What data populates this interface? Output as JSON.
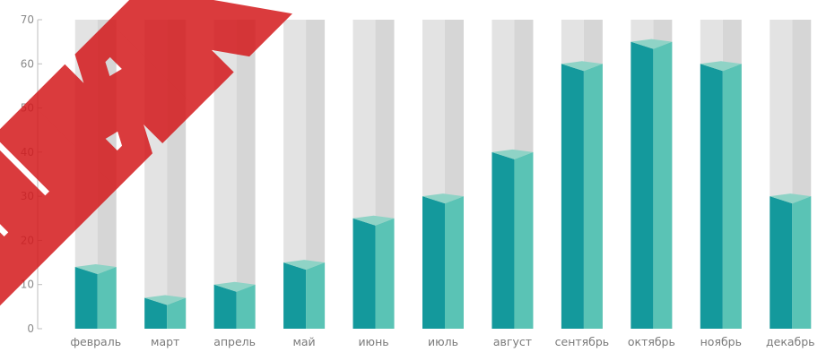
{
  "chart_data": {
    "type": "bar",
    "categories": [
      "февраль",
      "март",
      "апрель",
      "май",
      "июнь",
      "июль",
      "август",
      "сентябрь",
      "октябрь",
      "ноябрь",
      "декабрь"
    ],
    "values": [
      14,
      7,
      10,
      15,
      25,
      30,
      40,
      60,
      65,
      60,
      30
    ],
    "ylim": [
      0,
      70
    ],
    "yticks": [
      0,
      10,
      20,
      30,
      40,
      50,
      60,
      70
    ],
    "title": "",
    "xlabel": "",
    "ylabel": "",
    "grid": false,
    "style": "3d-prism-stacked-on-gray-background-columns"
  },
  "colors": {
    "bar_front": "#14999c",
    "bar_side": "#5ac3b5",
    "bar_top": "#8fd3c6",
    "background_column": "#e3e3e3",
    "background_column_side": "#d6d6d6",
    "axis": "#bdbdbd",
    "watermark": "#d4191c"
  },
  "watermark": "ШИК"
}
